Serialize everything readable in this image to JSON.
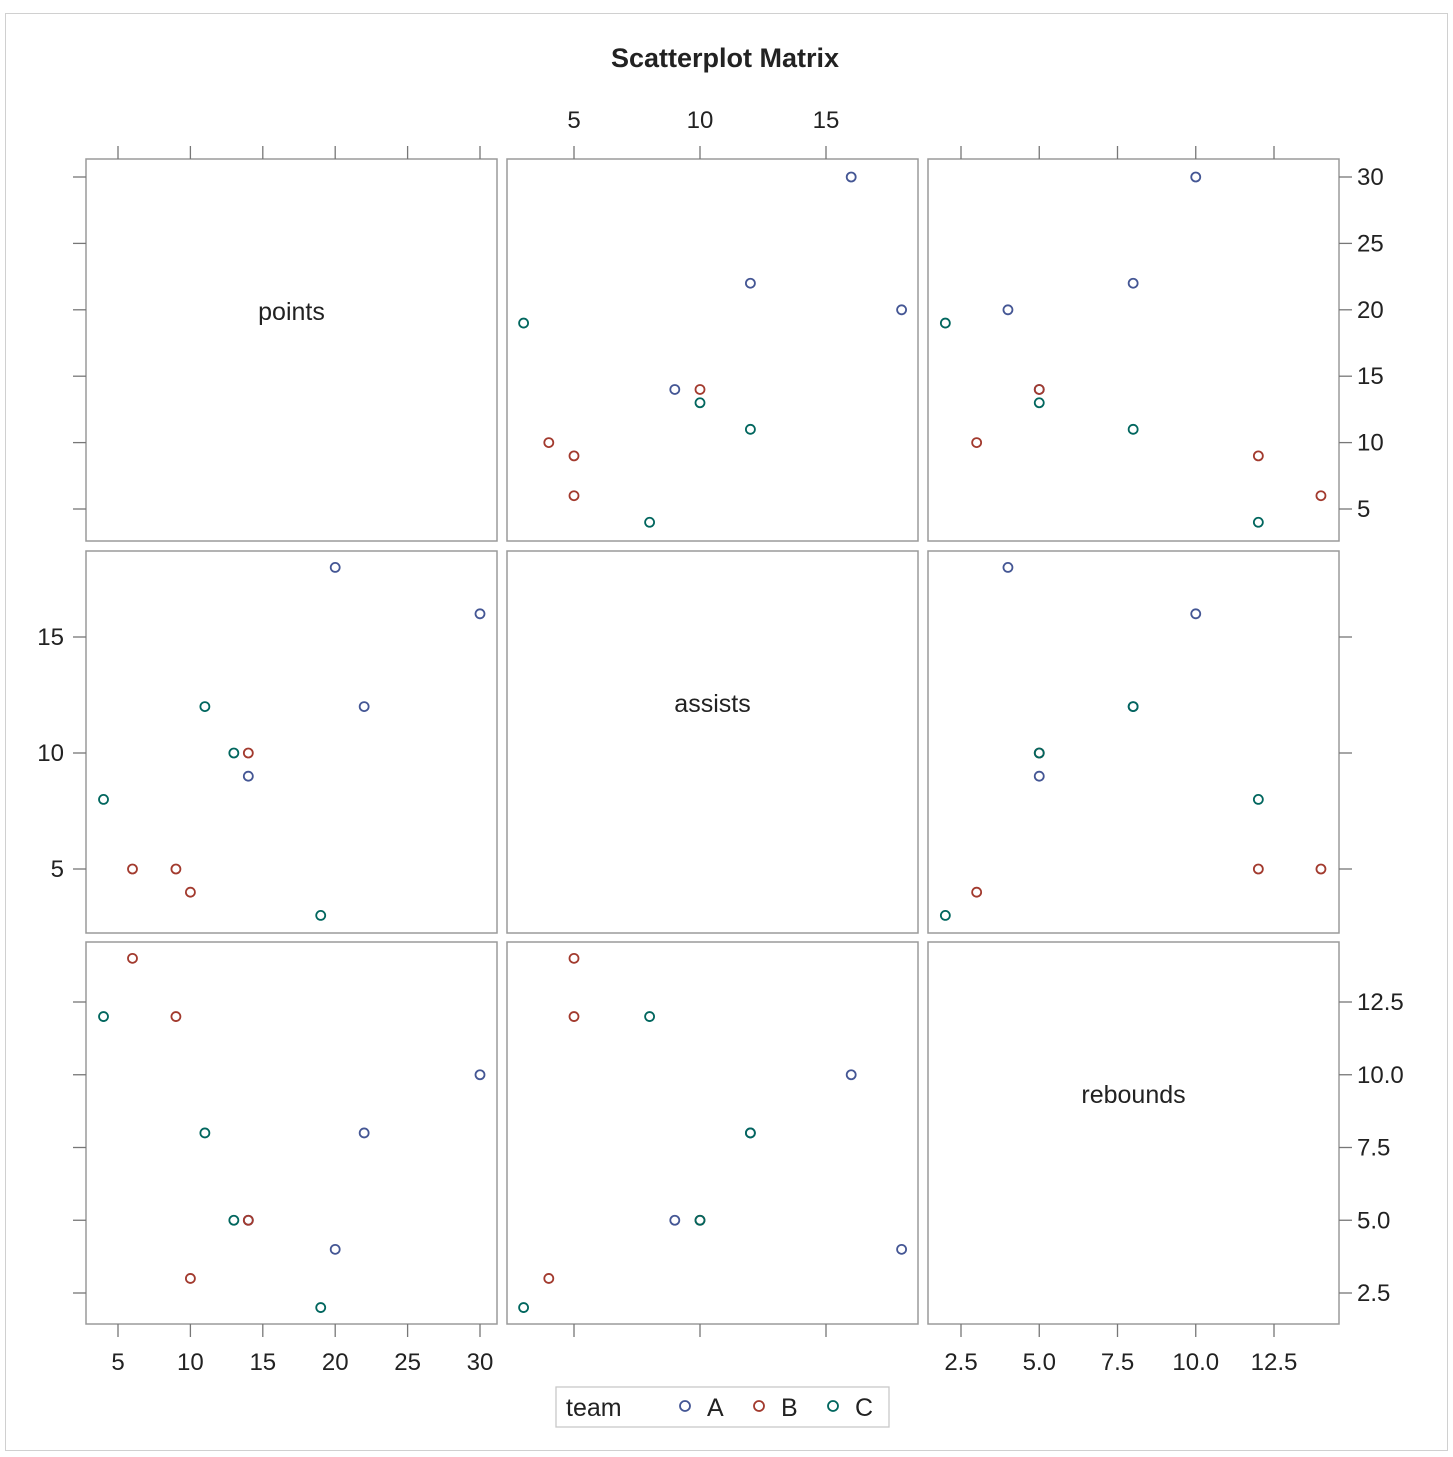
{
  "chart_data": {
    "type": "scatter",
    "title": "Scatterplot Matrix",
    "variables": [
      "points",
      "assists",
      "rebounds"
    ],
    "group_variable": "team",
    "groups": [
      {
        "name": "A",
        "color": "#445694"
      },
      {
        "name": "B",
        "color": "#A23A2E"
      },
      {
        "name": "C",
        "color": "#01665E"
      }
    ],
    "records": [
      {
        "team": "A",
        "points": 30,
        "assists": 16,
        "rebounds": 10
      },
      {
        "team": "A",
        "points": 22,
        "assists": 12,
        "rebounds": 8
      },
      {
        "team": "A",
        "points": 20,
        "assists": 18,
        "rebounds": 4
      },
      {
        "team": "A",
        "points": 14,
        "assists": 9,
        "rebounds": 5
      },
      {
        "team": "B",
        "points": 14,
        "assists": 10,
        "rebounds": 5
      },
      {
        "team": "B",
        "points": 10,
        "assists": 4,
        "rebounds": 3
      },
      {
        "team": "B",
        "points": 9,
        "assists": 5,
        "rebounds": 12
      },
      {
        "team": "B",
        "points": 6,
        "assists": 5,
        "rebounds": 14
      },
      {
        "team": "C",
        "points": 19,
        "assists": 3,
        "rebounds": 2
      },
      {
        "team": "C",
        "points": 13,
        "assists": 10,
        "rebounds": 5
      },
      {
        "team": "C",
        "points": 11,
        "assists": 12,
        "rebounds": 8
      },
      {
        "team": "C",
        "points": 4,
        "assists": 8,
        "rebounds": 12
      }
    ],
    "axes": {
      "points": {
        "ticks": [
          "5",
          "10",
          "15",
          "20",
          "25",
          "30"
        ],
        "tick_values": [
          5,
          10,
          15,
          20,
          25,
          30
        ]
      },
      "assists": {
        "ticks": [
          "5",
          "10",
          "15"
        ],
        "tick_values": [
          5,
          10,
          15
        ]
      },
      "rebounds": {
        "ticks": [
          "2.5",
          "5.0",
          "7.5",
          "10.0",
          "12.5"
        ],
        "tick_values": [
          2.5,
          5,
          7.5,
          10,
          12.5
        ]
      }
    },
    "legend": {
      "title": "team",
      "entries": [
        "A",
        "B",
        "C"
      ],
      "placement": "bottom"
    },
    "grid": false
  }
}
